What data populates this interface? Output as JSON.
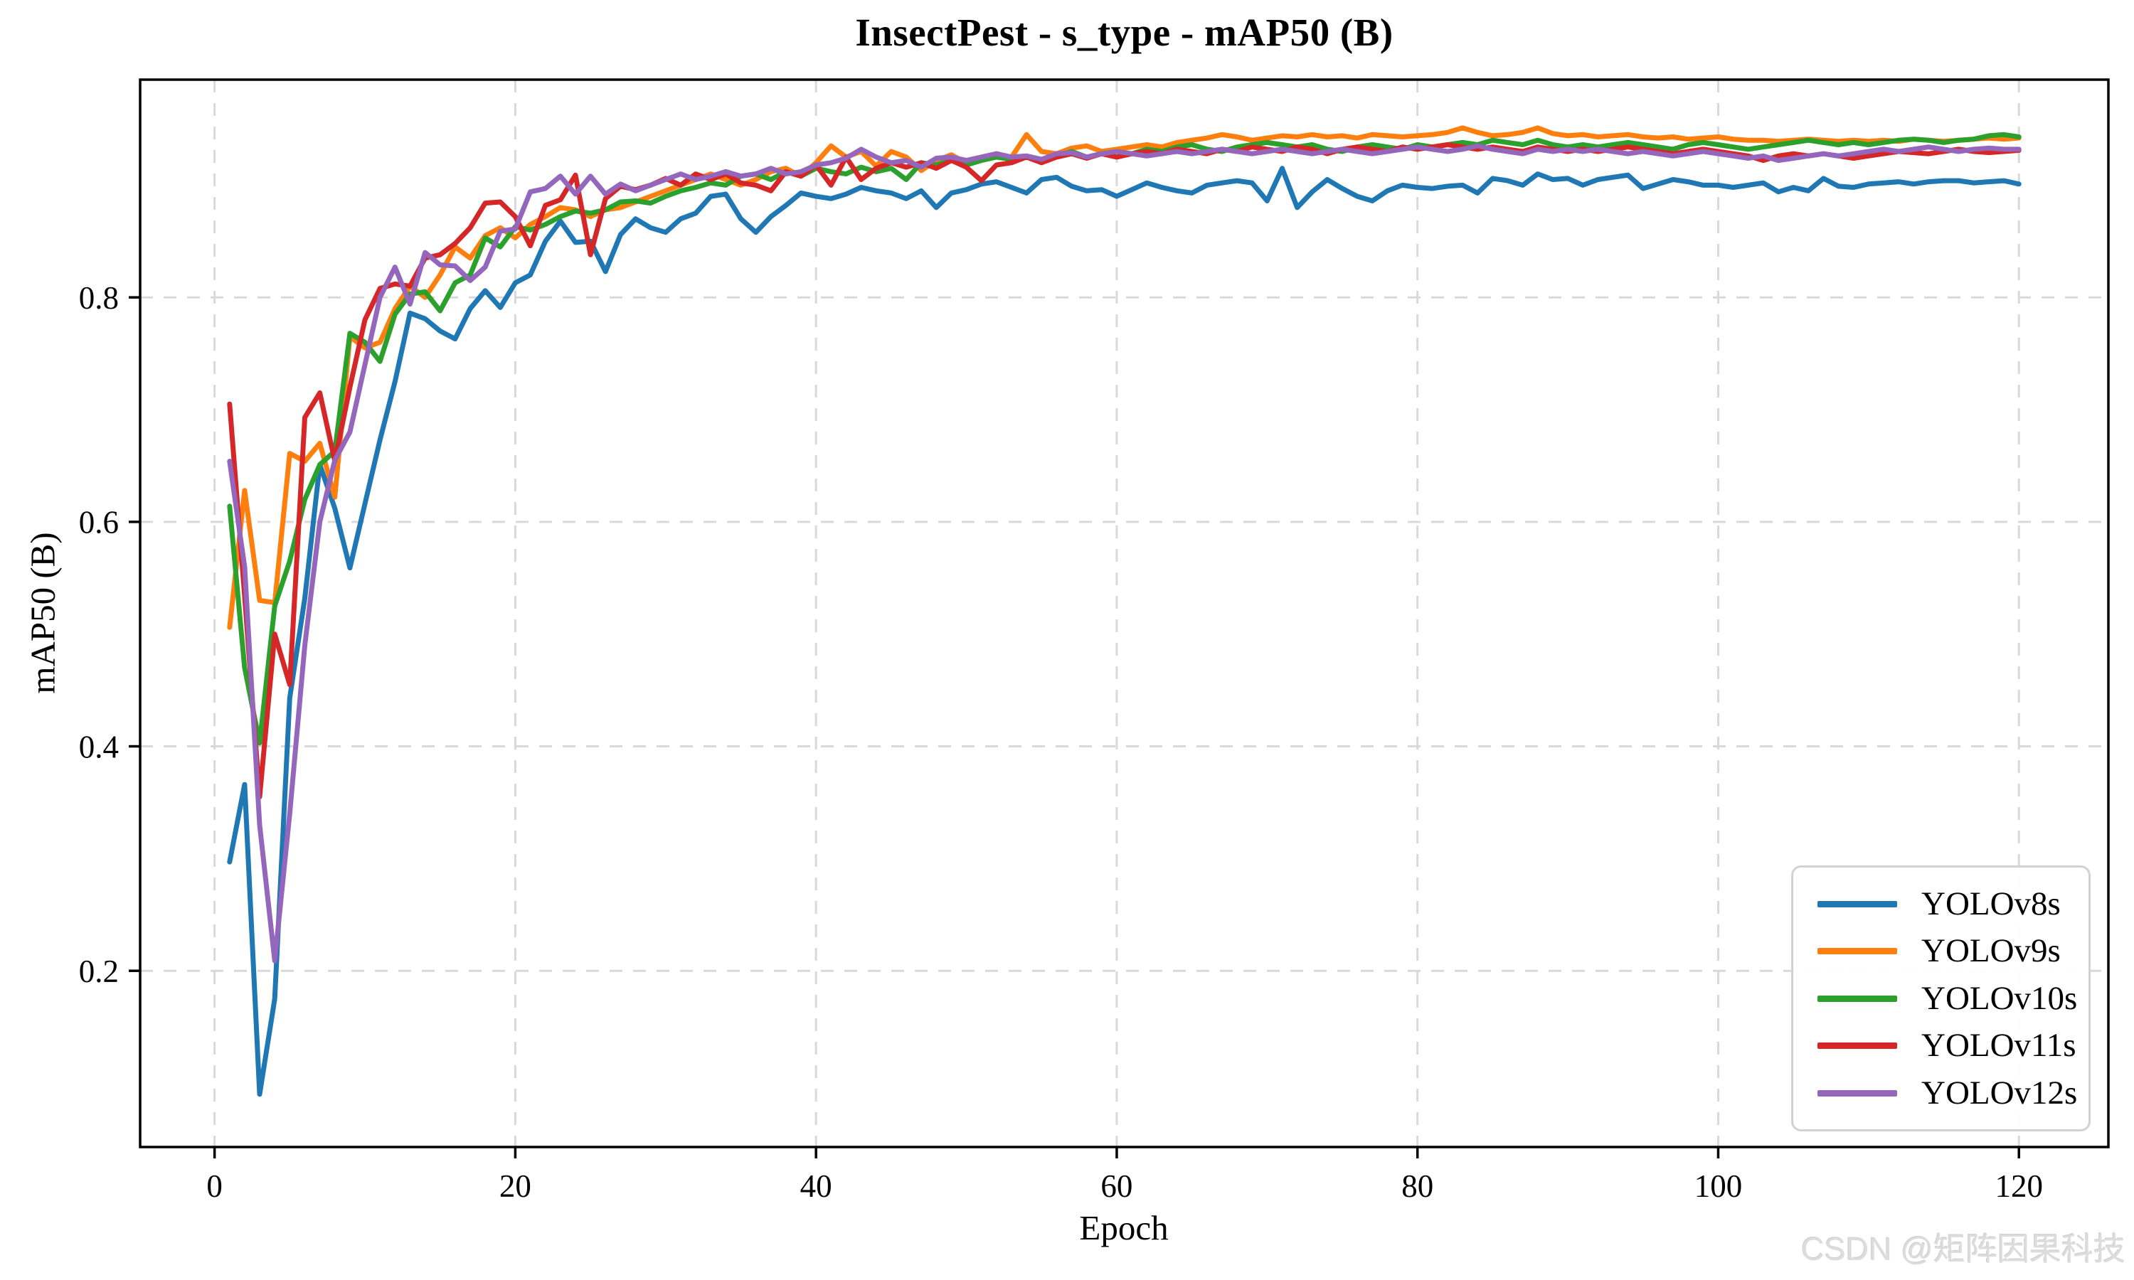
{
  "watermark": {
    "text": "CSDN @矩阵因果科技"
  },
  "chart_data": {
    "type": "line",
    "title": "InsectPest - s_type - mAP50 (B)",
    "xlabel": "Epoch",
    "ylabel": "mAP50 (B)",
    "x_start": 1,
    "xlim": [
      -4.95,
      125.95
    ],
    "ylim": [
      0.043,
      0.994
    ],
    "x_ticks": [
      0,
      20,
      40,
      60,
      80,
      100,
      120
    ],
    "x_tick_labels": [
      "0",
      "20",
      "40",
      "60",
      "80",
      "100",
      "120"
    ],
    "y_ticks": [
      0.2,
      0.4,
      0.6,
      0.8
    ],
    "y_tick_labels": [
      "0.2",
      "0.4",
      "0.6",
      "0.8"
    ],
    "grid": true,
    "grid_color": "#d9d9d9",
    "legend_position": "lower right",
    "series": [
      {
        "name": "YOLOv8s",
        "color": "#1f77b4",
        "values": [
          0.297,
          0.366,
          0.09,
          0.175,
          0.443,
          0.532,
          0.651,
          0.612,
          0.559,
          0.616,
          0.673,
          0.725,
          0.786,
          0.781,
          0.77,
          0.763,
          0.79,
          0.806,
          0.791,
          0.813,
          0.82,
          0.85,
          0.868,
          0.849,
          0.85,
          0.823,
          0.856,
          0.87,
          0.862,
          0.858,
          0.87,
          0.875,
          0.89,
          0.892,
          0.87,
          0.858,
          0.872,
          0.882,
          0.893,
          0.89,
          0.888,
          0.892,
          0.898,
          0.895,
          0.893,
          0.888,
          0.895,
          0.88,
          0.893,
          0.896,
          0.901,
          0.903,
          0.898,
          0.893,
          0.905,
          0.907,
          0.899,
          0.895,
          0.896,
          0.89,
          0.896,
          0.902,
          0.898,
          0.895,
          0.893,
          0.9,
          0.902,
          0.904,
          0.902,
          0.886,
          0.915,
          0.88,
          0.894,
          0.905,
          0.897,
          0.89,
          0.886,
          0.895,
          0.9,
          0.898,
          0.897,
          0.899,
          0.9,
          0.893,
          0.906,
          0.904,
          0.9,
          0.91,
          0.905,
          0.906,
          0.9,
          0.905,
          0.907,
          0.909,
          0.897,
          0.901,
          0.905,
          0.903,
          0.9,
          0.9,
          0.898,
          0.9,
          0.902,
          0.894,
          0.898,
          0.895,
          0.906,
          0.899,
          0.898,
          0.901,
          0.902,
          0.903,
          0.901,
          0.903,
          0.904,
          0.904,
          0.902,
          0.903,
          0.904,
          0.901
        ]
      },
      {
        "name": "YOLOv9s",
        "color": "#ff7f0e",
        "values": [
          0.506,
          0.628,
          0.53,
          0.528,
          0.661,
          0.654,
          0.67,
          0.622,
          0.765,
          0.755,
          0.76,
          0.79,
          0.81,
          0.8,
          0.82,
          0.845,
          0.835,
          0.855,
          0.862,
          0.853,
          0.865,
          0.872,
          0.88,
          0.878,
          0.872,
          0.878,
          0.88,
          0.885,
          0.89,
          0.895,
          0.9,
          0.905,
          0.91,
          0.905,
          0.9,
          0.905,
          0.912,
          0.915,
          0.908,
          0.92,
          0.935,
          0.925,
          0.93,
          0.917,
          0.93,
          0.925,
          0.913,
          0.922,
          0.927,
          0.92,
          0.925,
          0.928,
          0.925,
          0.945,
          0.93,
          0.928,
          0.933,
          0.935,
          0.93,
          0.932,
          0.934,
          0.936,
          0.934,
          0.938,
          0.94,
          0.942,
          0.945,
          0.943,
          0.94,
          0.942,
          0.944,
          0.943,
          0.945,
          0.943,
          0.944,
          0.942,
          0.945,
          0.944,
          0.943,
          0.944,
          0.945,
          0.947,
          0.951,
          0.947,
          0.944,
          0.945,
          0.947,
          0.951,
          0.946,
          0.944,
          0.945,
          0.943,
          0.944,
          0.945,
          0.943,
          0.942,
          0.943,
          0.941,
          0.942,
          0.943,
          0.941,
          0.94,
          0.94,
          0.939,
          0.94,
          0.941,
          0.94,
          0.939,
          0.94,
          0.939,
          0.94,
          0.939,
          0.941,
          0.94,
          0.939,
          0.94,
          0.941,
          0.942,
          0.941,
          0.942
        ]
      },
      {
        "name": "YOLOv10s",
        "color": "#2ca02c",
        "values": [
          0.614,
          0.47,
          0.403,
          0.525,
          0.565,
          0.62,
          0.651,
          0.663,
          0.768,
          0.76,
          0.743,
          0.785,
          0.803,
          0.805,
          0.788,
          0.813,
          0.82,
          0.853,
          0.845,
          0.863,
          0.86,
          0.865,
          0.872,
          0.877,
          0.875,
          0.878,
          0.885,
          0.886,
          0.884,
          0.89,
          0.895,
          0.898,
          0.902,
          0.9,
          0.908,
          0.91,
          0.905,
          0.912,
          0.908,
          0.915,
          0.912,
          0.91,
          0.916,
          0.912,
          0.915,
          0.905,
          0.92,
          0.918,
          0.922,
          0.918,
          0.922,
          0.925,
          0.923,
          0.925,
          0.922,
          0.926,
          0.93,
          0.925,
          0.928,
          0.93,
          0.928,
          0.932,
          0.93,
          0.934,
          0.936,
          0.932,
          0.93,
          0.934,
          0.936,
          0.938,
          0.936,
          0.934,
          0.936,
          0.932,
          0.93,
          0.934,
          0.936,
          0.934,
          0.932,
          0.936,
          0.934,
          0.936,
          0.938,
          0.936,
          0.94,
          0.938,
          0.936,
          0.94,
          0.936,
          0.934,
          0.936,
          0.934,
          0.936,
          0.938,
          0.936,
          0.934,
          0.932,
          0.936,
          0.938,
          0.936,
          0.934,
          0.932,
          0.934,
          0.936,
          0.938,
          0.94,
          0.938,
          0.936,
          0.938,
          0.936,
          0.938,
          0.94,
          0.941,
          0.94,
          0.938,
          0.94,
          0.941,
          0.944,
          0.945,
          0.943
        ]
      },
      {
        "name": "YOLOv11s",
        "color": "#d62728",
        "values": [
          0.705,
          0.534,
          0.355,
          0.5,
          0.455,
          0.693,
          0.715,
          0.654,
          0.72,
          0.78,
          0.808,
          0.812,
          0.81,
          0.835,
          0.838,
          0.848,
          0.862,
          0.884,
          0.885,
          0.872,
          0.846,
          0.882,
          0.887,
          0.909,
          0.838,
          0.888,
          0.899,
          0.896,
          0.9,
          0.906,
          0.9,
          0.91,
          0.905,
          0.91,
          0.902,
          0.9,
          0.895,
          0.912,
          0.908,
          0.918,
          0.9,
          0.925,
          0.905,
          0.915,
          0.92,
          0.916,
          0.92,
          0.915,
          0.922,
          0.916,
          0.904,
          0.918,
          0.92,
          0.925,
          0.92,
          0.925,
          0.928,
          0.924,
          0.928,
          0.925,
          0.928,
          0.93,
          0.928,
          0.932,
          0.93,
          0.928,
          0.932,
          0.93,
          0.934,
          0.932,
          0.93,
          0.934,
          0.932,
          0.928,
          0.932,
          0.934,
          0.932,
          0.93,
          0.934,
          0.932,
          0.934,
          0.936,
          0.934,
          0.932,
          0.934,
          0.932,
          0.93,
          0.934,
          0.932,
          0.93,
          0.932,
          0.93,
          0.932,
          0.934,
          0.932,
          0.93,
          0.928,
          0.93,
          0.932,
          0.93,
          0.928,
          0.926,
          0.922,
          0.926,
          0.928,
          0.926,
          0.928,
          0.926,
          0.924,
          0.926,
          0.928,
          0.93,
          0.929,
          0.928,
          0.93,
          0.932,
          0.93,
          0.929,
          0.93,
          0.931
        ]
      },
      {
        "name": "YOLOv12s",
        "color": "#9467bd",
        "values": [
          0.654,
          0.56,
          0.33,
          0.209,
          0.34,
          0.49,
          0.6,
          0.655,
          0.68,
          0.74,
          0.8,
          0.827,
          0.794,
          0.84,
          0.829,
          0.828,
          0.815,
          0.827,
          0.859,
          0.861,
          0.894,
          0.897,
          0.908,
          0.892,
          0.908,
          0.892,
          0.901,
          0.895,
          0.9,
          0.905,
          0.91,
          0.905,
          0.908,
          0.912,
          0.908,
          0.91,
          0.915,
          0.91,
          0.912,
          0.918,
          0.92,
          0.924,
          0.932,
          0.925,
          0.92,
          0.922,
          0.916,
          0.924,
          0.925,
          0.922,
          0.925,
          0.928,
          0.925,
          0.926,
          0.923,
          0.928,
          0.929,
          0.925,
          0.928,
          0.93,
          0.928,
          0.926,
          0.928,
          0.93,
          0.928,
          0.93,
          0.932,
          0.93,
          0.928,
          0.93,
          0.932,
          0.93,
          0.928,
          0.93,
          0.932,
          0.93,
          0.928,
          0.93,
          0.932,
          0.934,
          0.932,
          0.93,
          0.932,
          0.935,
          0.932,
          0.93,
          0.928,
          0.932,
          0.93,
          0.932,
          0.93,
          0.932,
          0.93,
          0.928,
          0.93,
          0.928,
          0.926,
          0.928,
          0.93,
          0.928,
          0.926,
          0.924,
          0.926,
          0.922,
          0.924,
          0.926,
          0.928,
          0.926,
          0.928,
          0.93,
          0.932,
          0.93,
          0.932,
          0.934,
          0.932,
          0.93,
          0.932,
          0.933,
          0.932,
          0.932
        ]
      }
    ]
  }
}
